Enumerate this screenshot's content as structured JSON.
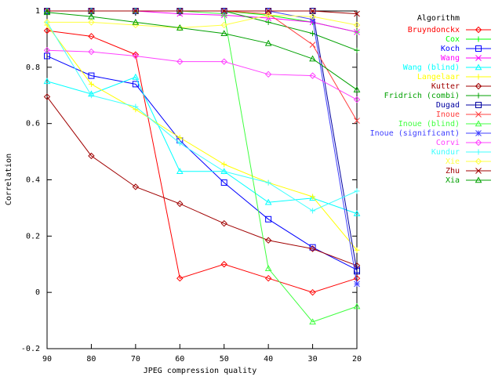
{
  "chart_data": {
    "type": "line",
    "title": "",
    "xlabel": "JPEG compression quality",
    "ylabel": "Correlation",
    "x": [
      90,
      80,
      70,
      60,
      50,
      40,
      30,
      20
    ],
    "x_reversed": true,
    "xlim": [
      90,
      20
    ],
    "ylim": [
      -0.2,
      1
    ],
    "xticks": [
      "90",
      "80",
      "70",
      "60",
      "50",
      "40",
      "30",
      "20"
    ],
    "yticks": [
      "-0.2",
      "0",
      "0.2",
      "0.4",
      "0.6",
      "0.8",
      "1"
    ],
    "grid": false,
    "legend_title": "Algorithm",
    "legend_position": "right",
    "series": [
      {
        "name": "Bruyndonckx",
        "color": "#ff0000",
        "marker": "diamond",
        "values": [
          0.93,
          0.91,
          0.845,
          0.05,
          0.1,
          0.05,
          0.0,
          0.05
        ]
      },
      {
        "name": "Cox",
        "color": "#00ff00",
        "marker": "plus",
        "values": [
          1.0,
          1.0,
          1.0,
          1.0,
          1.0,
          0.985,
          0.96,
          0.925
        ]
      },
      {
        "name": "Koch",
        "color": "#0000ff",
        "marker": "square",
        "values": [
          0.84,
          0.77,
          0.74,
          0.54,
          0.39,
          0.26,
          0.16,
          0.08
        ]
      },
      {
        "name": "Wang",
        "color": "#ff00ff",
        "marker": "cross",
        "values": [
          1.0,
          1.0,
          1.0,
          0.99,
          0.985,
          0.975,
          0.96,
          0.925
        ]
      },
      {
        "name": "Wang (blind)",
        "color": "#00ffff",
        "marker": "triangle",
        "values": [
          0.75,
          0.705,
          0.765,
          0.43,
          0.43,
          0.32,
          0.335,
          0.28
        ]
      },
      {
        "name": "Langelaar",
        "color": "#ffff00",
        "marker": "plus",
        "values": [
          0.95,
          0.74,
          0.65,
          0.55,
          0.455,
          0.39,
          0.34,
          0.15
        ]
      },
      {
        "name": "Kutter",
        "color": "#a00000",
        "marker": "diamond",
        "values": [
          0.695,
          0.485,
          0.375,
          0.315,
          0.245,
          0.185,
          0.155,
          0.095
        ]
      },
      {
        "name": "Fridrich (combi)",
        "color": "#00a000",
        "marker": "plus",
        "values": [
          1.0,
          1.0,
          1.0,
          1.0,
          1.0,
          0.96,
          0.92,
          0.86
        ]
      },
      {
        "name": "Dugad",
        "color": "#0000a0",
        "marker": "square",
        "values": [
          1.0,
          1.0,
          1.0,
          1.0,
          1.0,
          1.0,
          1.0,
          0.075
        ]
      },
      {
        "name": "Inoue",
        "color": "#ff4040",
        "marker": "cross",
        "values": [
          1.0,
          1.0,
          1.0,
          1.0,
          1.0,
          0.99,
          0.88,
          0.61
        ]
      },
      {
        "name": "Inoue (blind)",
        "color": "#40ff40",
        "marker": "triangle",
        "values": [
          1.0,
          1.0,
          1.0,
          1.0,
          0.99,
          0.085,
          -0.105,
          -0.05
        ]
      },
      {
        "name": "Inoue (significant)",
        "color": "#4040ff",
        "marker": "star",
        "values": [
          1.0,
          1.0,
          1.0,
          1.0,
          1.0,
          1.0,
          0.97,
          0.03
        ]
      },
      {
        "name": "Corvi",
        "color": "#ff40ff",
        "marker": "diamond",
        "values": [
          0.86,
          0.855,
          0.84,
          0.82,
          0.82,
          0.775,
          0.77,
          0.685
        ]
      },
      {
        "name": "Kundur",
        "color": "#40ffff",
        "marker": "plus",
        "values": [
          0.96,
          0.7,
          0.66,
          0.53,
          0.43,
          0.39,
          0.29,
          0.36
        ]
      },
      {
        "name": "Xie",
        "color": "#ffff40",
        "marker": "diamond",
        "values": [
          0.96,
          0.96,
          0.95,
          0.94,
          0.95,
          0.985,
          0.98,
          0.95
        ]
      },
      {
        "name": "Zhu",
        "color": "#a00000",
        "marker": "cross",
        "values": [
          1.0,
          1.0,
          1.0,
          1.0,
          1.0,
          1.0,
          1.0,
          0.99
        ]
      },
      {
        "name": "Xia",
        "color": "#00a000",
        "marker": "triangle",
        "values": [
          0.995,
          0.98,
          0.96,
          0.94,
          0.92,
          0.885,
          0.83,
          0.72
        ]
      }
    ]
  }
}
